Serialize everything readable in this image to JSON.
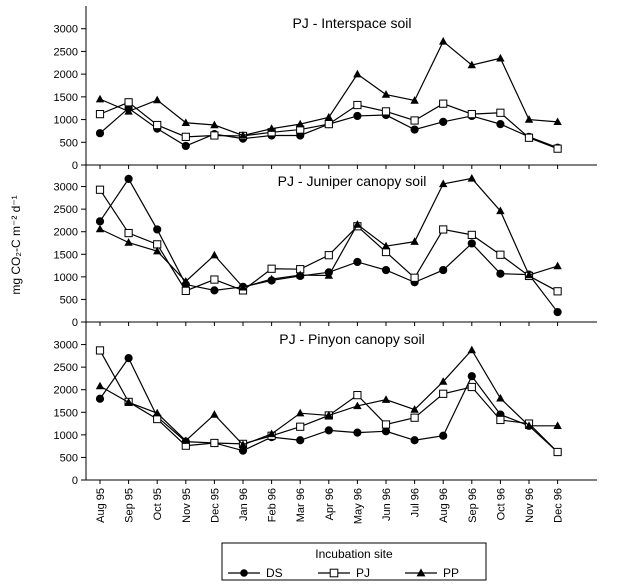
{
  "chart_data": {
    "type": "line",
    "y_axis_label": "mg CO₂-C m⁻² d⁻¹",
    "x_categories": [
      "Aug 95",
      "Sep 95",
      "Oct 95",
      "Nov 95",
      "Dec 95",
      "Jan 96",
      "Feb 96",
      "Mar 96",
      "Apr 96",
      "May 96",
      "Jun 96",
      "Jul 96",
      "Aug 96",
      "Sep 96",
      "Oct 96",
      "Nov 96",
      "Dec 96"
    ],
    "ylim": [
      0,
      3500
    ],
    "y_ticks": [
      0,
      500,
      1000,
      1500,
      2000,
      2500,
      3000
    ],
    "grid": false,
    "legend": {
      "title": "Incubation site",
      "placement": "bottom-center",
      "entries": [
        "DS",
        "PJ",
        "PP"
      ]
    },
    "panels": [
      {
        "title": "PJ - Interspace soil",
        "series": [
          {
            "name": "DS",
            "marker": "circle-filled",
            "values": [
              700,
              1250,
              800,
              420,
              680,
              580,
              650,
              650,
              900,
              1080,
              1100,
              780,
              950,
              1080,
              900,
              620,
              380
            ]
          },
          {
            "name": "PJ",
            "marker": "square-open",
            "values": [
              1120,
              1380,
              880,
              620,
              650,
              640,
              720,
              780,
              900,
              1320,
              1180,
              980,
              1350,
              1120,
              1150,
              600,
              360
            ]
          },
          {
            "name": "PP",
            "marker": "triangle-filled",
            "values": [
              1450,
              1180,
              1430,
              930,
              880,
              650,
              800,
              900,
              1050,
              2000,
              1550,
              1420,
              2720,
              2200,
              2350,
              1000,
              950
            ]
          }
        ]
      },
      {
        "title": "PJ - Juniper canopy soil",
        "series": [
          {
            "name": "DS",
            "marker": "circle-filled",
            "values": [
              2230,
              3170,
              2050,
              830,
              700,
              780,
              920,
              1020,
              1100,
              1330,
              1150,
              880,
              1150,
              1740,
              1070,
              1050,
              220
            ]
          },
          {
            "name": "PJ",
            "marker": "square-open",
            "values": [
              2930,
              1970,
              1720,
              690,
              940,
              700,
              1180,
              1170,
              1480,
              2120,
              1550,
              980,
              2050,
              1930,
              1490,
              1020,
              680
            ]
          },
          {
            "name": "PP",
            "marker": "triangle-filled",
            "values": [
              2060,
              1760,
              1570,
              900,
              1480,
              770,
              950,
              1040,
              1030,
              2160,
              1680,
              1780,
              3060,
              3180,
              2460,
              1040,
              1240
            ]
          }
        ]
      },
      {
        "title": "PJ - Pinyon canopy soil",
        "series": [
          {
            "name": "DS",
            "marker": "circle-filled",
            "values": [
              1800,
              2700,
              1400,
              850,
              820,
              650,
              950,
              880,
              1100,
              1050,
              1080,
              880,
              980,
              2300,
              1450,
              1200,
              620
            ]
          },
          {
            "name": "PJ",
            "marker": "square-open",
            "values": [
              2870,
              1730,
              1350,
              760,
              820,
              800,
              980,
              1180,
              1430,
              1880,
              1230,
              1380,
              1910,
              2060,
              1330,
              1250,
              620
            ]
          },
          {
            "name": "PP",
            "marker": "triangle-filled",
            "values": [
              2080,
              1720,
              1480,
              870,
              1450,
              780,
              1020,
              1480,
              1430,
              1640,
              1780,
              1560,
              2180,
              2880,
              1810,
              1200,
              1200
            ]
          }
        ]
      }
    ]
  }
}
